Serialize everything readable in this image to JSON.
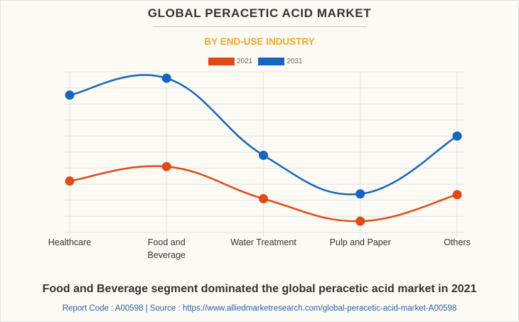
{
  "chart_data": {
    "type": "line",
    "title": "GLOBAL PERACETIC ACID MARKET",
    "subtitle": "BY END-USE INDUSTRY",
    "categories": [
      "Healthcare",
      "Food and Beverage",
      "Water Treatment",
      "Pulp and Paper",
      "Others"
    ],
    "category_lines": [
      [
        "Healthcare"
      ],
      [
        "Food and",
        "Beverage"
      ],
      [
        "Water Treatment"
      ],
      [
        "Pulp and Paper"
      ],
      [
        "Others"
      ]
    ],
    "series": [
      {
        "name": "2021",
        "color": "#e04a16",
        "values": [
          3.2,
          4.1,
          2.1,
          0.7,
          2.35
        ]
      },
      {
        "name": "2031",
        "color": "#1565c0",
        "values": [
          8.55,
          9.6,
          4.8,
          2.4,
          6.0
        ]
      }
    ],
    "xlabel": "",
    "ylabel": "",
    "ylim": [
      0,
      10
    ],
    "y_unit_note": "relative scale (no y-axis labels shown); 10 gridline intervals",
    "grid": true,
    "smooth": true,
    "legend_position": "top-center"
  },
  "caption": "Food and Beverage segment dominated the global peracetic acid market in 2021",
  "source_line": "Report Code : A00598  |  Source : https://www.alliedmarketresearch.com/global-peracetic-acid-market-A00598",
  "colors": {
    "title": "#333333",
    "subtitle": "#f5a623",
    "source": "#2a62a8",
    "grid": "#e3e3e0"
  }
}
